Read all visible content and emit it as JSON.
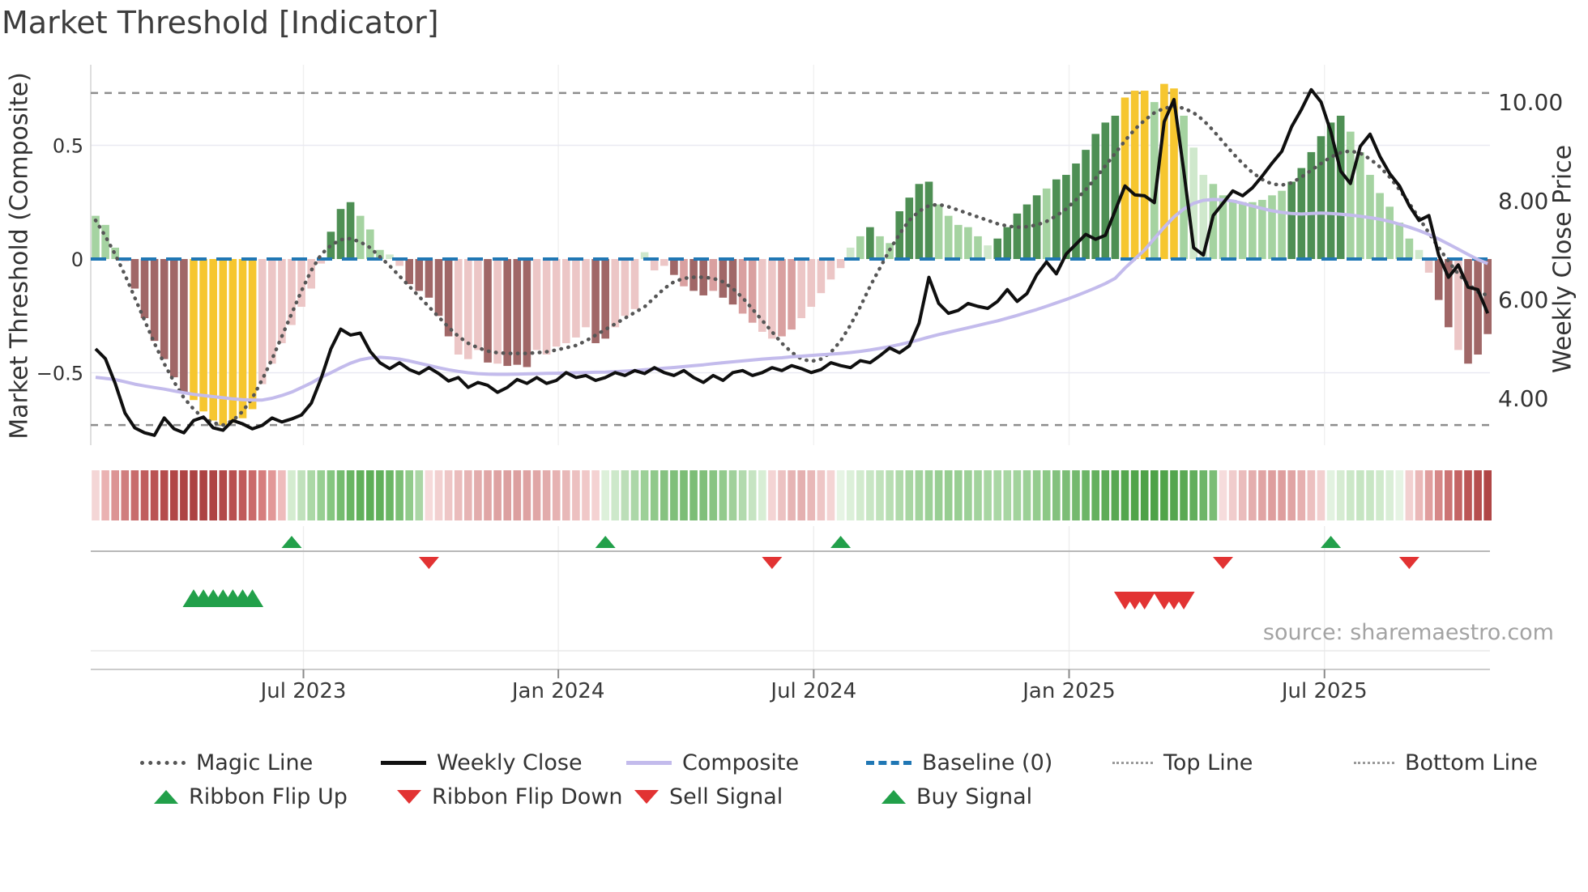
{
  "title": "Market Threshold [Indicator]",
  "source_note": "source: sharemaestro.com",
  "left_axis": {
    "title": "Market Threshold (Composite)",
    "ticks": [
      {
        "v": 0.5,
        "label": "0.5"
      },
      {
        "v": 0,
        "label": "0"
      },
      {
        "v": -0.5,
        "label": "−0.5"
      }
    ]
  },
  "right_axis": {
    "title": "Weekly Close Price",
    "ticks": [
      {
        "p": 10,
        "label": "10.00"
      },
      {
        "p": 8,
        "label": "8.00"
      },
      {
        "p": 6,
        "label": "6.00"
      },
      {
        "p": 4,
        "label": "4.00"
      }
    ]
  },
  "x_axis": {
    "ticks": [
      {
        "week": 21.2,
        "label": "Jul 2023"
      },
      {
        "week": 47.2,
        "label": "Jan 2024"
      },
      {
        "week": 73.25,
        "label": "Jul 2024"
      },
      {
        "week": 99.3,
        "label": "Jan 2025"
      },
      {
        "week": 125.35,
        "label": "Jul 2025"
      }
    ]
  },
  "legend": {
    "row1": [
      {
        "label": "Magic Line"
      },
      {
        "label": "Weekly Close"
      },
      {
        "label": "Composite"
      },
      {
        "label": "Baseline (0)"
      },
      {
        "label": "Top Line"
      },
      {
        "label": "Bottom Line"
      }
    ],
    "row2": [
      {
        "label": "Ribbon Flip Up"
      },
      {
        "label": "Ribbon Flip Down"
      },
      {
        "label": "Sell Signal"
      },
      {
        "label": "Buy Signal"
      }
    ]
  },
  "chart_data": {
    "type": "combo",
    "title": "Market Threshold [Indicator]",
    "xlabel": "",
    "ylabel_left": "Market Threshold (Composite)",
    "ylabel_right": "Weekly Close Price",
    "left_ylim": [
      -0.85,
      0.85
    ],
    "right_ticks": [
      4,
      6,
      8,
      10
    ],
    "baseline": 0,
    "top_line": 0.73,
    "bottom_line": -0.73,
    "weeks": 143,
    "palette": {
      "dg": "#4e8f54",
      "lg": "#a5d3a1",
      "pg": "#cfe8cc",
      "dr": "#a06767",
      "pr": "#d9a0a0",
      "pp": "#ecc6c6",
      "yl": "#f6c62f",
      "weekly_close": "#0f0f0f",
      "composite": "#c3bbec",
      "magic": "#565656",
      "baseline_color": "#2077b4",
      "threshold_lines": "#8d8d8d",
      "signal_green": "#22a04a",
      "signal_red": "#e23333"
    },
    "bars": {
      "values": [
        0.19,
        0.15,
        0.05,
        -0.01,
        -0.13,
        -0.26,
        -0.36,
        -0.44,
        -0.52,
        -0.59,
        -0.62,
        -0.67,
        -0.71,
        -0.73,
        -0.72,
        -0.7,
        -0.66,
        -0.55,
        -0.46,
        -0.37,
        -0.29,
        -0.21,
        -0.13,
        -0.02,
        0.12,
        0.22,
        0.25,
        0.19,
        0.13,
        0.04,
        0.02,
        -0.03,
        -0.11,
        -0.14,
        -0.17,
        -0.25,
        -0.34,
        -0.42,
        -0.44,
        -0.4,
        -0.455,
        -0.46,
        -0.47,
        -0.465,
        -0.475,
        -0.4,
        -0.42,
        -0.385,
        -0.37,
        -0.345,
        -0.3,
        -0.37,
        -0.35,
        -0.3,
        -0.25,
        -0.22,
        0.03,
        -0.05,
        -0.03,
        -0.07,
        -0.12,
        -0.14,
        -0.16,
        -0.14,
        -0.17,
        -0.2,
        -0.24,
        -0.28,
        -0.32,
        -0.35,
        -0.34,
        -0.31,
        -0.26,
        -0.21,
        -0.15,
        -0.09,
        -0.04,
        0.05,
        0.1,
        0.14,
        0.1,
        0.07,
        0.21,
        0.27,
        0.33,
        0.34,
        0.24,
        0.19,
        0.15,
        0.14,
        0.1,
        0.06,
        0.09,
        0.14,
        0.2,
        0.24,
        0.28,
        0.31,
        0.35,
        0.37,
        0.42,
        0.48,
        0.55,
        0.6,
        0.63,
        0.71,
        0.74,
        0.74,
        0.69,
        0.77,
        0.75,
        0.63,
        0.49,
        0.37,
        0.33,
        0.28,
        0.26,
        0.25,
        0.25,
        0.26,
        0.28,
        0.3,
        0.34,
        0.4,
        0.47,
        0.54,
        0.6,
        0.63,
        0.56,
        0.47,
        0.37,
        0.29,
        0.23,
        0.16,
        0.09,
        0.04,
        -0.06,
        -0.18,
        -0.3,
        -0.4,
        -0.46,
        -0.42,
        -0.33
      ],
      "colors": [
        "lg",
        "lg",
        "lg",
        "pp",
        "dr",
        "dr",
        "dr",
        "dr",
        "dr",
        "dr",
        "yl",
        "yl",
        "yl",
        "yl",
        "yl",
        "yl",
        "yl",
        "pp",
        "pp",
        "pp",
        "pp",
        "pp",
        "pp",
        "pp",
        "dg",
        "dg",
        "dg",
        "lg",
        "lg",
        "lg",
        "pg",
        "pp",
        "dr",
        "dr",
        "dr",
        "dr",
        "dr",
        "pp",
        "pp",
        "pp",
        "dr",
        "pp",
        "dr",
        "dr",
        "dr",
        "pp",
        "pp",
        "pp",
        "pp",
        "pp",
        "pp",
        "dr",
        "dr",
        "pp",
        "pp",
        "pp",
        "pg",
        "pp",
        "pp",
        "dr",
        "pr",
        "dr",
        "dr",
        "pr",
        "dr",
        "dr",
        "pr",
        "pr",
        "pp",
        "pp",
        "pr",
        "pr",
        "pp",
        "pp",
        "pp",
        "pp",
        "pp",
        "pg",
        "lg",
        "dg",
        "lg",
        "lg",
        "dg",
        "dg",
        "dg",
        "dg",
        "lg",
        "lg",
        "lg",
        "lg",
        "lg",
        "pg",
        "dg",
        "dg",
        "dg",
        "dg",
        "dg",
        "lg",
        "dg",
        "dg",
        "dg",
        "dg",
        "dg",
        "dg",
        "dg",
        "yl",
        "yl",
        "yl",
        "lg",
        "yl",
        "yl",
        "lg",
        "pg",
        "pg",
        "lg",
        "lg",
        "lg",
        "lg",
        "lg",
        "lg",
        "lg",
        "lg",
        "dg",
        "dg",
        "dg",
        "dg",
        "dg",
        "dg",
        "lg",
        "lg",
        "lg",
        "lg",
        "lg",
        "lg",
        "lg",
        "pg",
        "pp",
        "dr",
        "dr",
        "pp",
        "dr",
        "dr",
        "dr"
      ]
    },
    "weekly_close": [
      5.0,
      4.8,
      4.3,
      3.7,
      3.4,
      3.3,
      3.25,
      3.6,
      3.38,
      3.3,
      3.55,
      3.62,
      3.4,
      3.35,
      3.55,
      3.48,
      3.38,
      3.45,
      3.6,
      3.52,
      3.58,
      3.66,
      3.9,
      4.4,
      5.0,
      5.4,
      5.28,
      5.32,
      4.95,
      4.72,
      4.6,
      4.72,
      4.58,
      4.5,
      4.62,
      4.5,
      4.35,
      4.42,
      4.22,
      4.32,
      4.26,
      4.12,
      4.22,
      4.38,
      4.3,
      4.42,
      4.3,
      4.36,
      4.52,
      4.42,
      4.46,
      4.36,
      4.42,
      4.52,
      4.46,
      4.56,
      4.5,
      4.62,
      4.52,
      4.46,
      4.56,
      4.42,
      4.32,
      4.46,
      4.36,
      4.52,
      4.56,
      4.46,
      4.52,
      4.62,
      4.56,
      4.66,
      4.6,
      4.52,
      4.58,
      4.72,
      4.66,
      4.62,
      4.76,
      4.72,
      4.86,
      5.02,
      4.92,
      5.06,
      5.52,
      6.45,
      5.92,
      5.72,
      5.78,
      5.92,
      5.86,
      5.82,
      5.96,
      6.2,
      5.96,
      6.12,
      6.5,
      6.76,
      6.52,
      6.92,
      7.12,
      7.32,
      7.22,
      7.3,
      7.8,
      8.3,
      8.12,
      8.1,
      7.96,
      9.6,
      10.05,
      8.6,
      7.05,
      6.9,
      7.7,
      7.95,
      8.2,
      8.1,
      8.26,
      8.5,
      8.76,
      9.0,
      9.5,
      9.85,
      10.25,
      10.0,
      9.4,
      8.6,
      8.35,
      9.1,
      9.35,
      8.9,
      8.55,
      8.3,
      7.9,
      7.6,
      7.7,
      6.9,
      6.45,
      6.7,
      6.25,
      6.2,
      5.72
    ],
    "composite": [
      -0.52,
      -0.525,
      -0.53,
      -0.54,
      -0.55,
      -0.558,
      -0.565,
      -0.572,
      -0.58,
      -0.588,
      -0.595,
      -0.6,
      -0.605,
      -0.61,
      -0.615,
      -0.618,
      -0.62,
      -0.62,
      -0.612,
      -0.6,
      -0.585,
      -0.565,
      -0.545,
      -0.52,
      -0.5,
      -0.478,
      -0.458,
      -0.443,
      -0.435,
      -0.432,
      -0.435,
      -0.44,
      -0.448,
      -0.458,
      -0.468,
      -0.478,
      -0.487,
      -0.494,
      -0.5,
      -0.504,
      -0.506,
      -0.507,
      -0.507,
      -0.506,
      -0.505,
      -0.504,
      -0.503,
      -0.502,
      -0.501,
      -0.5,
      -0.499,
      -0.498,
      -0.497,
      -0.495,
      -0.493,
      -0.49,
      -0.487,
      -0.484,
      -0.48,
      -0.477,
      -0.473,
      -0.469,
      -0.465,
      -0.46,
      -0.456,
      -0.452,
      -0.448,
      -0.444,
      -0.44,
      -0.437,
      -0.434,
      -0.43,
      -0.427,
      -0.424,
      -0.421,
      -0.418,
      -0.415,
      -0.411,
      -0.406,
      -0.4,
      -0.393,
      -0.385,
      -0.376,
      -0.366,
      -0.355,
      -0.343,
      -0.332,
      -0.322,
      -0.312,
      -0.302,
      -0.292,
      -0.282,
      -0.272,
      -0.26,
      -0.248,
      -0.235,
      -0.222,
      -0.208,
      -0.193,
      -0.178,
      -0.162,
      -0.145,
      -0.127,
      -0.108,
      -0.085,
      -0.04,
      0.0,
      0.04,
      0.09,
      0.14,
      0.185,
      0.22,
      0.245,
      0.258,
      0.262,
      0.26,
      0.255,
      0.245,
      0.233,
      0.222,
      0.212,
      0.205,
      0.2,
      0.198,
      0.2,
      0.202,
      0.2,
      0.197,
      0.193,
      0.188,
      0.182,
      0.175,
      0.165,
      0.153,
      0.14,
      0.125,
      0.108,
      0.088,
      0.066,
      0.043,
      0.02,
      -0.002,
      -0.02
    ],
    "magic_line": [
      0.17,
      0.1,
      0.02,
      -0.07,
      -0.17,
      -0.27,
      -0.37,
      -0.46,
      -0.54,
      -0.61,
      -0.66,
      -0.7,
      -0.72,
      -0.73,
      -0.71,
      -0.67,
      -0.61,
      -0.53,
      -0.44,
      -0.34,
      -0.24,
      -0.14,
      -0.05,
      0.02,
      0.06,
      0.085,
      0.09,
      0.075,
      0.05,
      0.01,
      -0.03,
      -0.075,
      -0.12,
      -0.165,
      -0.21,
      -0.255,
      -0.3,
      -0.34,
      -0.37,
      -0.39,
      -0.405,
      -0.412,
      -0.415,
      -0.415,
      -0.415,
      -0.412,
      -0.408,
      -0.4,
      -0.39,
      -0.38,
      -0.36,
      -0.335,
      -0.31,
      -0.285,
      -0.26,
      -0.235,
      -0.21,
      -0.17,
      -0.13,
      -0.1,
      -0.085,
      -0.08,
      -0.08,
      -0.085,
      -0.1,
      -0.13,
      -0.17,
      -0.22,
      -0.27,
      -0.32,
      -0.37,
      -0.41,
      -0.44,
      -0.45,
      -0.44,
      -0.41,
      -0.36,
      -0.29,
      -0.21,
      -0.12,
      -0.04,
      0.04,
      0.11,
      0.17,
      0.21,
      0.235,
      0.24,
      0.23,
      0.215,
      0.2,
      0.185,
      0.17,
      0.155,
      0.145,
      0.14,
      0.142,
      0.15,
      0.165,
      0.19,
      0.22,
      0.26,
      0.305,
      0.355,
      0.41,
      0.465,
      0.52,
      0.57,
      0.61,
      0.643,
      0.663,
      0.67,
      0.663,
      0.643,
      0.61,
      0.565,
      0.515,
      0.465,
      0.42,
      0.38,
      0.35,
      0.33,
      0.325,
      0.335,
      0.36,
      0.39,
      0.42,
      0.448,
      0.468,
      0.475,
      0.465,
      0.44,
      0.405,
      0.36,
      0.305,
      0.245,
      0.18,
      0.115,
      0.05,
      -0.01,
      -0.065,
      -0.11,
      -0.145,
      -0.16
    ],
    "ribbon": [
      "#f4d6d6",
      "#eab2b2",
      "#dc9494",
      "#d07e7e",
      "#c86c6c",
      "#c05e5e",
      "#ba5454",
      "#b54d4d",
      "#b14747",
      "#ae4444",
      "#ac4242",
      "#ac4242",
      "#ae4444",
      "#b24848",
      "#b84f4f",
      "#c05a5a",
      "#ca6a6a",
      "#d67e7e",
      "#e29898",
      "#eebcbc",
      "#d4ecd0",
      "#c0e1bc",
      "#abd8a6",
      "#97cf92",
      "#85c680",
      "#75bc6f",
      "#69b563",
      "#61b05b",
      "#5dae57",
      "#61b05b",
      "#6bb665",
      "#7cbf76",
      "#92cb8c",
      "#aad6a5",
      "#f6dada",
      "#f2d0d0",
      "#eec6c6",
      "#eabcbc",
      "#e6b4b4",
      "#e2acac",
      "#e0a6a6",
      "#dea2a2",
      "#dca0a0",
      "#dca0a0",
      "#dea2a2",
      "#e0a6a6",
      "#e2acac",
      "#e6b2b2",
      "#e8b8b8",
      "#ecc0c0",
      "#f0c8c8",
      "#f4d2d2",
      "#ddf0da",
      "#cde8ca",
      "#bcdeb8",
      "#acd7a8",
      "#9cd097",
      "#90c98b",
      "#86c280",
      "#80bf7a",
      "#7cbd76",
      "#7cbd76",
      "#80bf7a",
      "#88c482",
      "#92ca8d",
      "#a0d09b",
      "#b2daae",
      "#c6e4c2",
      "#d8eed5",
      "#f4d4d4",
      "#ecc2c2",
      "#e6b4b4",
      "#e4b0b0",
      "#e8b8b8",
      "#eec6c6",
      "#f4d4d4",
      "#e6f4e4",
      "#dcf0d9",
      "#d2ebce",
      "#c8e6c4",
      "#c0e2bb",
      "#b8deb3",
      "#b0daab",
      "#a8d6a3",
      "#a2d39d",
      "#9cd097",
      "#98ce93",
      "#96cd91",
      "#98ce93",
      "#9cd097",
      "#a2d39d",
      "#a8d6a3",
      "#aad7a5",
      "#a8d6a3",
      "#a2d39d",
      "#9cd097",
      "#94cc8f",
      "#8cc886",
      "#84c17e",
      "#7cbd76",
      "#74b96e",
      "#6cb566",
      "#64b05e",
      "#5eac58",
      "#58a852",
      "#54a64e",
      "#50a44a",
      "#4ea248",
      "#4ea248",
      "#50a44a",
      "#54a64e",
      "#5aa954",
      "#62ae5d",
      "#6eb569",
      "#7cbd76",
      "#f6dcdc",
      "#f0cccc",
      "#eabcbc",
      "#e4aeae",
      "#e0a4a4",
      "#de9e9e",
      "#de9e9e",
      "#e0a4a4",
      "#e6b0b0",
      "#ecc0c0",
      "#f2d0d0",
      "#e2f2e0",
      "#d6ecd2",
      "#cce8c8",
      "#c6e5c2",
      "#c8e6c4",
      "#d0eacc",
      "#daeed7",
      "#e6f4e4",
      "#f2d0d0",
      "#eab8b8",
      "#e09e9e",
      "#d68888",
      "#cc7474",
      "#c46464",
      "#bc5656",
      "#b64e4e",
      "#b04646"
    ],
    "signals": {
      "ribbon_flip_up_weeks": [
        20,
        52,
        76,
        126
      ],
      "ribbon_flip_down_weeks": [
        34,
        69,
        115,
        134
      ],
      "buy_signal_weeks": [
        10,
        11,
        12,
        13,
        14,
        15,
        16
      ],
      "sell_signal_weeks": [
        105,
        106,
        107,
        109,
        110,
        111
      ]
    }
  }
}
